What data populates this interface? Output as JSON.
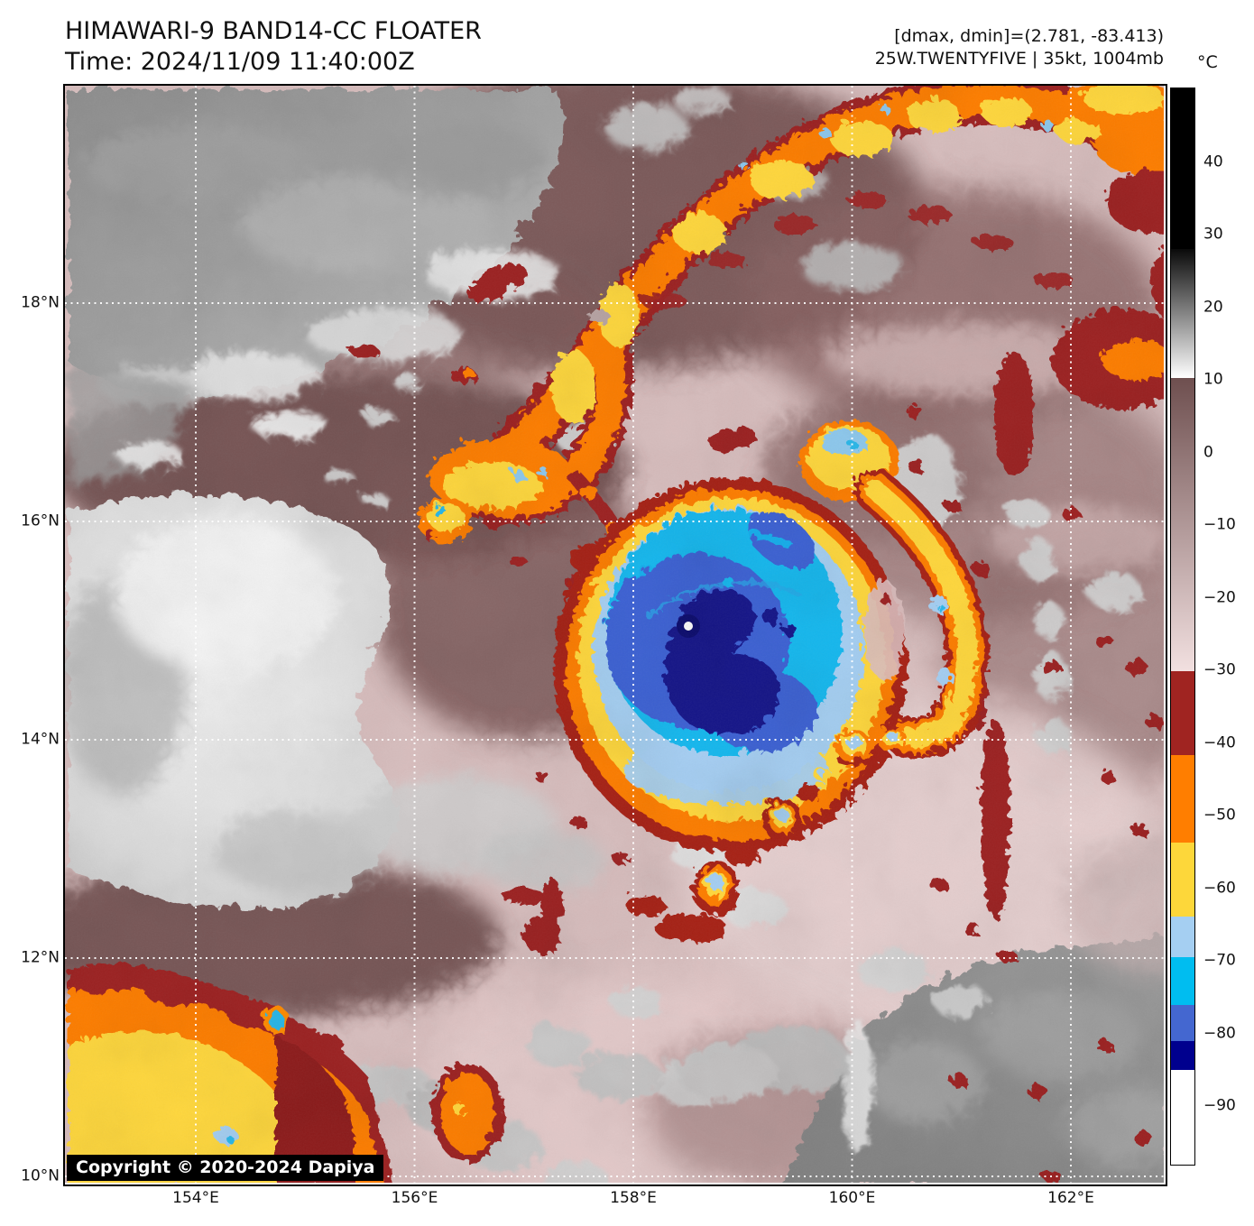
{
  "header": {
    "title_line1": "HIMAWARI-9 BAND14-CC FLOATER",
    "title_line2": "Time: 2024/11/09 11:40:00Z",
    "dmax_dmin_line": "[dmax, dmin]=(2.781, -83.413)",
    "storm_info_line": "25W.TWENTYFIVE | 35kt, 1004mb"
  },
  "map": {
    "copyright": "Copyright © 2020-2024 Dapiya"
  },
  "colorbar": {
    "unit_label": "°C",
    "vmax": 50.3,
    "vmin": -97.9,
    "ticks": [
      {
        "value": 40,
        "label": "40"
      },
      {
        "value": 30,
        "label": "30"
      },
      {
        "value": 20,
        "label": "20"
      },
      {
        "value": 10,
        "label": "10"
      },
      {
        "value": 0,
        "label": "0"
      },
      {
        "value": -10,
        "label": "−10"
      },
      {
        "value": -20,
        "label": "−20"
      },
      {
        "value": -30,
        "label": "−30"
      },
      {
        "value": -40,
        "label": "−40"
      },
      {
        "value": -50,
        "label": "−50"
      },
      {
        "value": -60,
        "label": "−60"
      },
      {
        "value": -70,
        "label": "−70"
      },
      {
        "value": -80,
        "label": "−80"
      },
      {
        "value": -90,
        "label": "−90"
      }
    ],
    "segments": [
      {
        "v0": 50.3,
        "v1": 28.2,
        "c0": "#000000"
      },
      {
        "v0": 28.2,
        "v1": 10.4,
        "c0": "#0a0a0a",
        "c1": "#ffffff"
      },
      {
        "v0": 10.4,
        "v1": -29.9,
        "c0": "#6e4f4f",
        "c1": "#f2e0e0"
      },
      {
        "v0": -29.9,
        "v1": -41.5,
        "c0": "#a02421"
      },
      {
        "v0": -41.5,
        "v1": -53.5,
        "c0": "#ff7e00"
      },
      {
        "v0": -53.5,
        "v1": -63.7,
        "c0": "#fdd73a"
      },
      {
        "v0": -63.7,
        "v1": -69.3,
        "c0": "#a5cff2"
      },
      {
        "v0": -69.3,
        "v1": -75.9,
        "c0": "#00bdf0"
      },
      {
        "v0": -75.9,
        "v1": -80.9,
        "c0": "#4467d0"
      },
      {
        "v0": -80.9,
        "v1": -84.8,
        "c0": "#00008e"
      },
      {
        "v0": -84.8,
        "v1": -97.9,
        "c0": "#ffffff"
      }
    ]
  },
  "axes": {
    "lat_ticks": [
      {
        "deg": 18,
        "label": "18°N"
      },
      {
        "deg": 16,
        "label": "16°N"
      },
      {
        "deg": 14,
        "label": "14°N"
      },
      {
        "deg": 12,
        "label": "12°N"
      },
      {
        "deg": 10,
        "label": "10°N"
      }
    ],
    "lon_ticks": [
      {
        "deg": 154,
        "label": "154°E"
      },
      {
        "deg": 156,
        "label": "156°E"
      },
      {
        "deg": 158,
        "label": "158°E"
      },
      {
        "deg": 160,
        "label": "160°E"
      },
      {
        "deg": 162,
        "label": "162°E"
      }
    ]
  },
  "palette": {
    "background_pink": "#d9bfbf",
    "mauve_dark": "#6d4c4c",
    "mauve_mid": "#7b5858",
    "pink_light": "#e8d2d2",
    "gray_cloud": "#9a9a9a",
    "white_cloud": "#eeeeee",
    "deep_red": "#a02421",
    "orange": "#fe7e00",
    "yellow": "#ffd83e",
    "light_blue": "#a5cff2",
    "cyan": "#14b8ee",
    "royal_blue": "#3d62d4",
    "navy": "#13138a",
    "eye_white": "#ffffff",
    "gridline": "#ffffff"
  }
}
